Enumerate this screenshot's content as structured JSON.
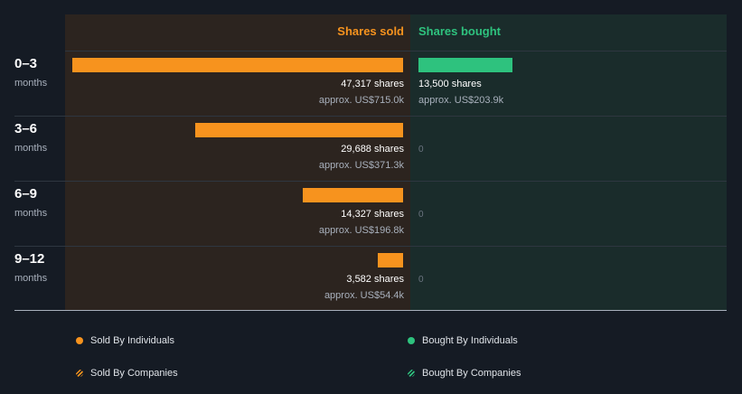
{
  "chart_data": {
    "type": "bar",
    "orientation": "horizontal",
    "column_headers": {
      "sold": "Shares sold",
      "bought": "Shares bought"
    },
    "categories": [
      {
        "period": "0–3",
        "unit": "months"
      },
      {
        "period": "3–6",
        "unit": "months"
      },
      {
        "period": "6–9",
        "unit": "months"
      },
      {
        "period": "9–12",
        "unit": "months"
      }
    ],
    "series": [
      {
        "name": "Shares sold",
        "color": "#f7931e",
        "values": [
          47317,
          29688,
          14327,
          3582
        ],
        "share_labels": [
          "47,317 shares",
          "29,688 shares",
          "14,327 shares",
          "3,582 shares"
        ],
        "value_labels": [
          "approx. US$715.0k",
          "approx. US$371.3k",
          "approx. US$196.8k",
          "approx. US$54.4k"
        ]
      },
      {
        "name": "Shares bought",
        "color": "#2ec27e",
        "values": [
          13500,
          0,
          0,
          0
        ],
        "share_labels": [
          "13,500 shares",
          "0",
          "0",
          "0"
        ],
        "value_labels": [
          "approx. US$203.9k",
          "",
          "",
          ""
        ]
      }
    ],
    "legend": [
      {
        "label": "Sold By Individuals",
        "color": "#f7931e",
        "style": "solid"
      },
      {
        "label": "Bought By Individuals",
        "color": "#2ec27e",
        "style": "solid"
      },
      {
        "label": "Sold By Companies",
        "color": "#f7931e",
        "style": "hatched"
      },
      {
        "label": "Bought By Companies",
        "color": "#2ec27e",
        "style": "hatched"
      }
    ],
    "legend_placement": "bottom"
  }
}
